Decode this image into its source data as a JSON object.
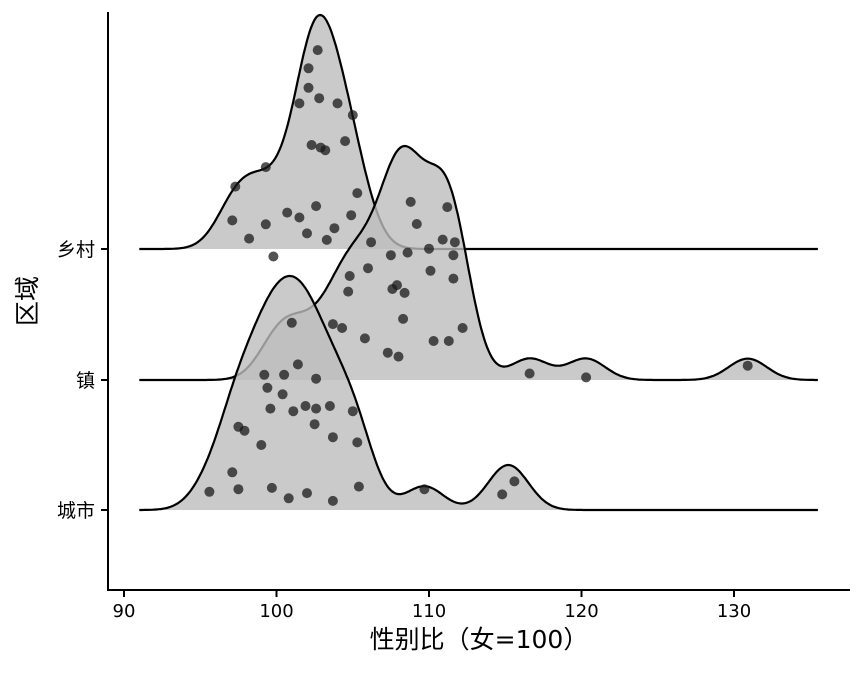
{
  "chart_data": {
    "type": "ridgeline",
    "xlabel": "性别比（女=100）",
    "ylabel": "区域",
    "xlim": [
      89,
      138
    ],
    "xticks": [
      90,
      100,
      110,
      120,
      130
    ],
    "grid": false,
    "legend": "none",
    "colors": {
      "fill": "#bdbdbd",
      "point": "#1a1a1a",
      "line": "#000000"
    },
    "series": [
      {
        "name": "城市",
        "density_peak": 100.8,
        "points": [
          [
            95.6,
            0.14
          ],
          [
            97.1,
            0.29
          ],
          [
            97.5,
            0.16
          ],
          [
            97.5,
            0.64
          ],
          [
            97.9,
            0.61
          ],
          [
            99.0,
            0.5
          ],
          [
            99.2,
            1.04
          ],
          [
            99.4,
            0.94
          ],
          [
            99.6,
            0.78
          ],
          [
            99.7,
            0.17
          ],
          [
            100.4,
            0.89
          ],
          [
            100.8,
            0.09
          ],
          [
            101.0,
            1.44
          ],
          [
            101.1,
            0.76
          ],
          [
            101.4,
            1.12
          ],
          [
            101.9,
            0.8
          ],
          [
            102.0,
            0.13
          ],
          [
            102.5,
            0.66
          ],
          [
            102.6,
            0.78
          ],
          [
            103.5,
            0.8
          ],
          [
            103.7,
            0.56
          ],
          [
            103.7,
            0.07
          ],
          [
            105.0,
            0.76
          ],
          [
            105.3,
            0.52
          ],
          [
            105.4,
            0.18
          ],
          [
            109.7,
            0.16
          ],
          [
            114.8,
            0.12
          ],
          [
            115.6,
            0.22
          ]
        ]
      },
      {
        "name": "镇",
        "density_peak": 109.5,
        "points": [
          [
            99.8,
            0.95
          ],
          [
            100.5,
            0.04
          ],
          [
            101.5,
            1.25
          ],
          [
            102.6,
            0.01
          ],
          [
            103.7,
            0.43
          ],
          [
            104.3,
            0.4
          ],
          [
            104.7,
            0.68
          ],
          [
            104.8,
            0.8
          ],
          [
            105.8,
            0.32
          ],
          [
            106.0,
            0.86
          ],
          [
            106.2,
            1.06
          ],
          [
            107.3,
            0.21
          ],
          [
            107.5,
            0.96
          ],
          [
            107.6,
            0.7
          ],
          [
            107.9,
            0.73
          ],
          [
            108.0,
            0.18
          ],
          [
            108.3,
            0.47
          ],
          [
            108.4,
            0.67
          ],
          [
            108.6,
            0.98
          ],
          [
            108.8,
            1.37
          ],
          [
            109.2,
            1.2
          ],
          [
            110.0,
            1.01
          ],
          [
            110.1,
            0.84
          ],
          [
            110.3,
            0.3
          ],
          [
            110.9,
            1.08
          ],
          [
            111.2,
            1.33
          ],
          [
            111.3,
            0.3
          ],
          [
            111.6,
            0.78
          ],
          [
            111.6,
            0.96
          ],
          [
            111.7,
            1.06
          ],
          [
            112.2,
            0.4
          ],
          [
            116.6,
            0.05
          ],
          [
            120.3,
            0.02
          ],
          [
            130.9,
            0.11
          ]
        ]
      },
      {
        "name": "乡村",
        "density_peak": 102.9,
        "points": [
          [
            97.1,
            0.22
          ],
          [
            97.3,
            0.48
          ],
          [
            98.2,
            0.08
          ],
          [
            99.3,
            0.19
          ],
          [
            99.3,
            0.63
          ],
          [
            100.7,
            0.28
          ],
          [
            101.5,
            1.12
          ],
          [
            102.0,
            0.12
          ],
          [
            102.1,
            1.39
          ],
          [
            102.1,
            1.24
          ],
          [
            102.3,
            0.8
          ],
          [
            102.6,
            0.33
          ],
          [
            102.7,
            1.53
          ],
          [
            102.8,
            1.16
          ],
          [
            102.9,
            0.78
          ],
          [
            103.2,
            0.76
          ],
          [
            103.3,
            0.07
          ],
          [
            103.8,
            0.16
          ],
          [
            104.0,
            1.12
          ],
          [
            104.5,
            0.83
          ],
          [
            104.9,
            0.26
          ],
          [
            105.0,
            1.03
          ],
          [
            105.3,
            0.43
          ]
        ]
      }
    ]
  }
}
